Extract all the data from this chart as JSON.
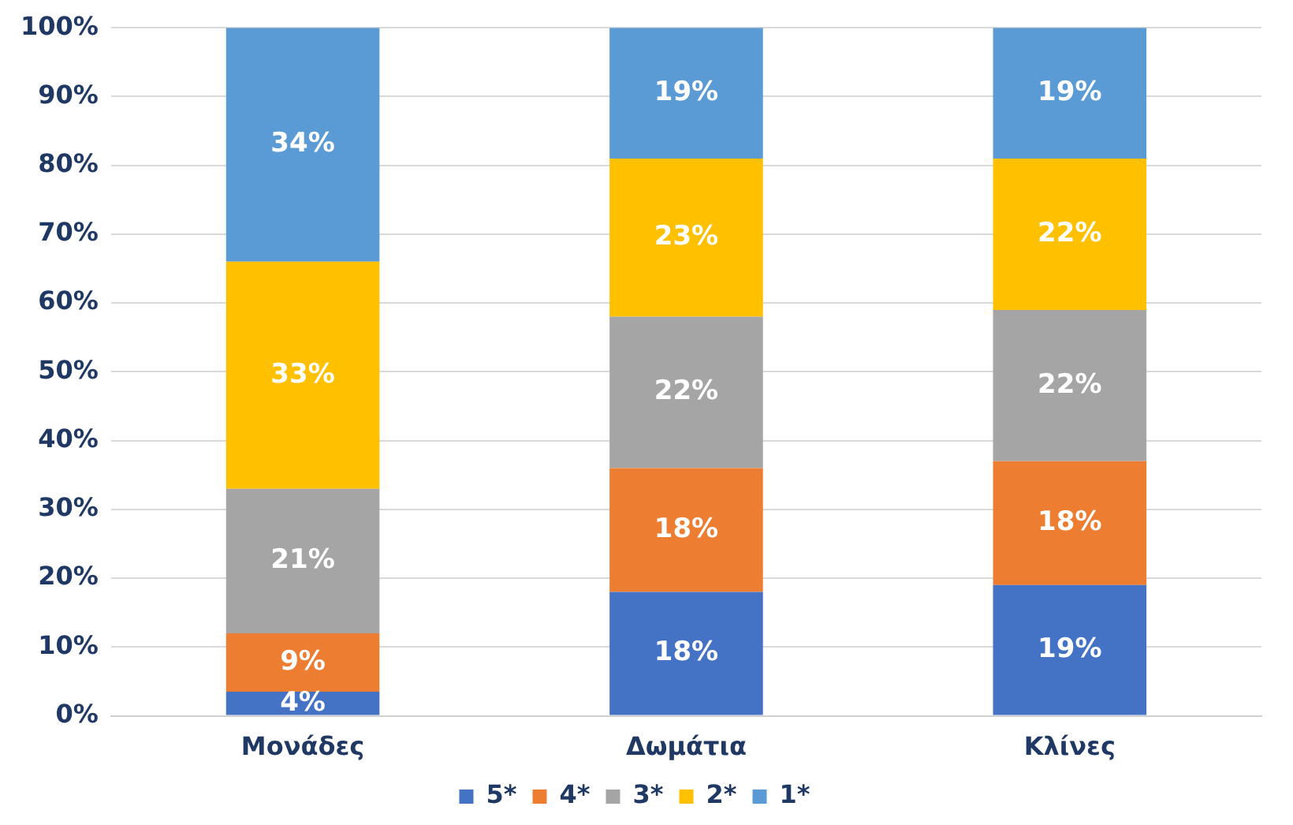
{
  "chart_data": {
    "type": "bar",
    "stacked": true,
    "categories": [
      "Μονάδες",
      "Δωμάτια",
      "Κλίνες"
    ],
    "series": [
      {
        "name": "5*",
        "color": "#4472c4",
        "values": [
          3.5,
          18,
          19
        ],
        "value_labels": [
          "4%",
          "18%",
          "19%"
        ]
      },
      {
        "name": "4*",
        "color": "#ed7d31",
        "values": [
          8.5,
          18,
          18
        ],
        "value_labels": [
          "9%",
          "18%",
          "18%"
        ]
      },
      {
        "name": "3*",
        "color": "#a5a5a5",
        "values": [
          21,
          22,
          22
        ],
        "value_labels": [
          "21%",
          "22%",
          "22%"
        ]
      },
      {
        "name": "2*",
        "color": "#ffc000",
        "values": [
          33,
          23,
          22
        ],
        "value_labels": [
          "33%",
          "23%",
          "22%"
        ]
      },
      {
        "name": "1*",
        "color": "#5b9bd5",
        "values": [
          34,
          19,
          19
        ],
        "value_labels": [
          "34%",
          "19%",
          "19%"
        ]
      }
    ],
    "ylim": [
      0,
      100
    ],
    "yticks": [
      {
        "value": 0,
        "label": "0%"
      },
      {
        "value": 10,
        "label": "10%"
      },
      {
        "value": 20,
        "label": "20%"
      },
      {
        "value": 30,
        "label": "30%"
      },
      {
        "value": 40,
        "label": "40%"
      },
      {
        "value": 50,
        "label": "50%"
      },
      {
        "value": 60,
        "label": "60%"
      },
      {
        "value": 70,
        "label": "70%"
      },
      {
        "value": 80,
        "label": "80%"
      },
      {
        "value": 90,
        "label": "90%"
      },
      {
        "value": 100,
        "label": "100%"
      }
    ],
    "grid": "y",
    "legend": "bottom"
  }
}
